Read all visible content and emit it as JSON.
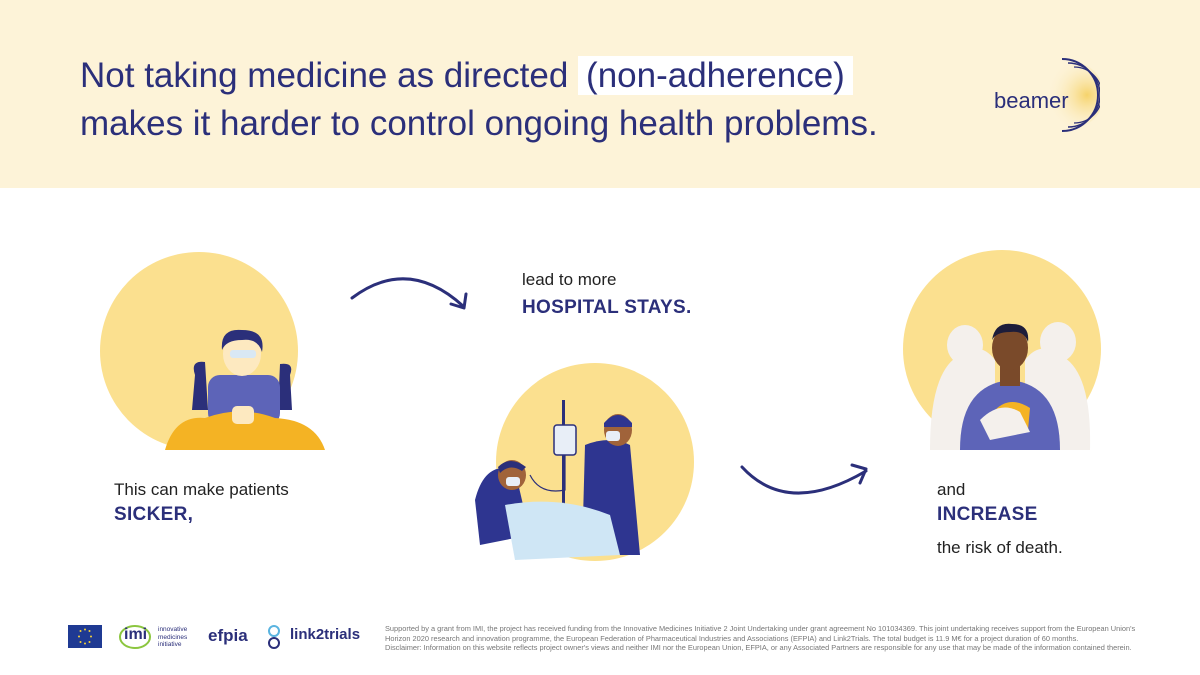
{
  "header": {
    "headline_before": "Not taking medicine as directed ",
    "headline_highlight": "(non-adherence)",
    "headline_line2": "makes it harder to control ongoing health problems.",
    "logo_text": "beamer"
  },
  "steps": {
    "sicker": {
      "intro": "This can make patients",
      "emphasis": "SICKER,"
    },
    "hospital": {
      "intro": "lead to more",
      "emphasis": "HOSPITAL STAYS."
    },
    "death": {
      "intro": "and",
      "emphasis": "INCREASE",
      "outro": "the risk of death."
    }
  },
  "footer": {
    "imi_label": "imi",
    "imi_sub": "innovative medicines initiative",
    "efpia_label": "efpia",
    "link2trials_label": "link2trials",
    "support_text": "Supported by a grant from IMI, the project has received funding from the Innovative Medicines Initiative 2 Joint Undertaking under grant agreement No 101034369. This joint undertaking receives support from the European Union's Horizon 2020 research and innovation programme, the European Federation of Pharmaceutical Industries and Associations (EFPIA) and Link2Trials. The total budget is 11.9 M€ for a project duration of 60 months.",
    "disclaimer_text": "Disclaimer: Information on this website reflects project owner's views and neither IMI nor the European Union, EFPIA, or any Associated Partners are responsible for any use that may be made of the information contained therein."
  },
  "colors": {
    "navy": "#2b2f7a",
    "header_bg": "#fdf3d8",
    "circle": "#fbe08f",
    "accent_orange": "#f4b324"
  }
}
